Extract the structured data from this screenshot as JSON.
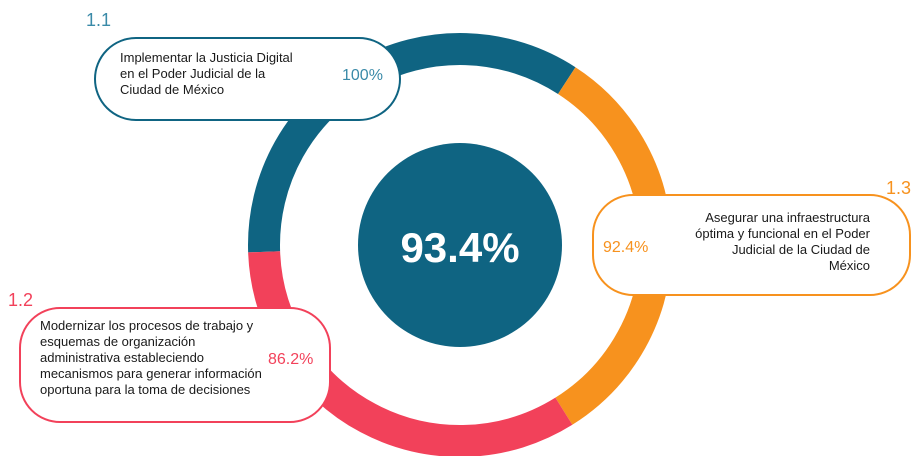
{
  "center": "93.4%",
  "items": [
    {
      "number": "1.1",
      "lines": [
        "Implementar la Justicia Digital",
        "en el Poder Judicial de la",
        "Ciudad de México"
      ],
      "percent": "100%"
    },
    {
      "number": "1.2",
      "lines": [
        "Modernizar los procesos de trabajo y",
        "esquemas de organización",
        "administrativa estableciendo",
        "mecanismos para generar información",
        "oportuna para la toma de decisiones"
      ],
      "percent": "86.2%"
    },
    {
      "number": "1.3",
      "lines": [
        "Asegurar una infraestructura",
        "óptima y funcional en el Poder",
        "Judicial de la Ciudad de",
        "México"
      ],
      "percent": "92.4%"
    }
  ]
}
